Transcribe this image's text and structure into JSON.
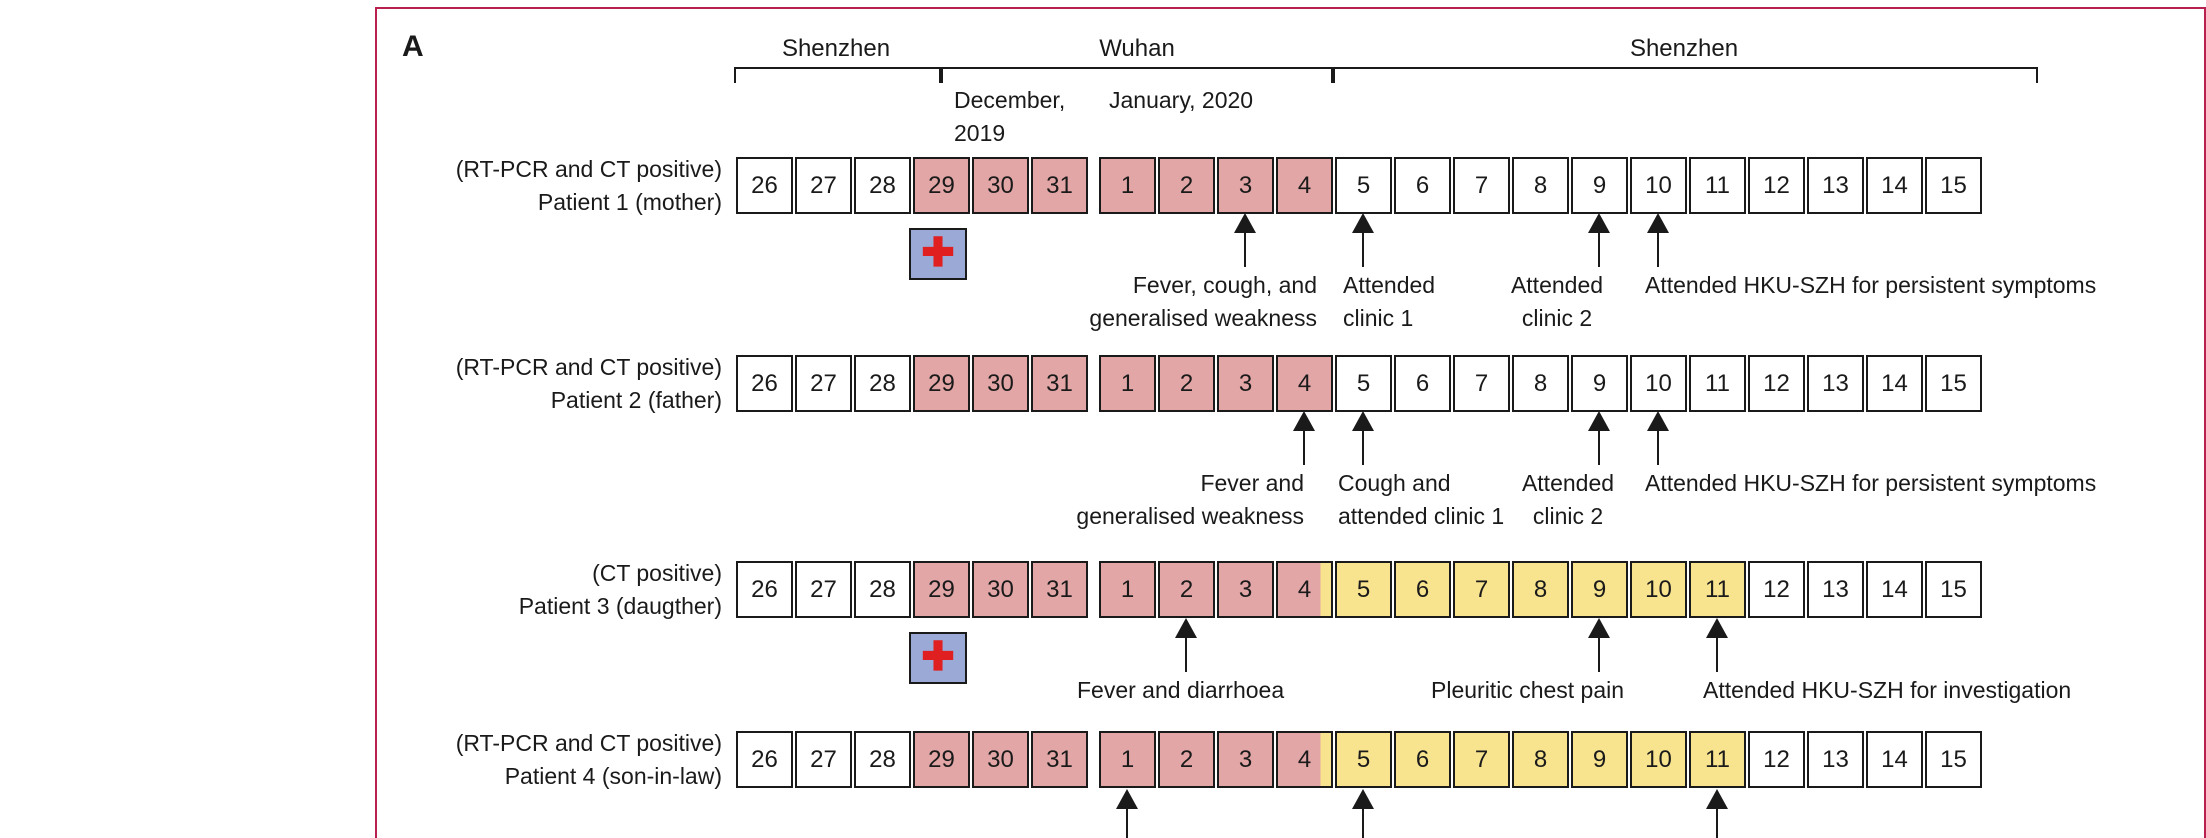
{
  "panel_label": "A",
  "regions": [
    {
      "label": "Shenzhen"
    },
    {
      "label": "Wuhan"
    },
    {
      "label": "Shenzhen"
    }
  ],
  "months": {
    "dec_line1": "December,",
    "dec_line2": "2019",
    "jan": "January, 2020"
  },
  "dec_days": [
    "26",
    "27",
    "28",
    "29",
    "30",
    "31"
  ],
  "jan_days": [
    "1",
    "2",
    "3",
    "4",
    "5",
    "6",
    "7",
    "8",
    "9",
    "10",
    "11",
    "12",
    "13",
    "14",
    "15"
  ],
  "hospital_icon": "red-cross-icon",
  "colors": {
    "wuhan": "#e3a6a6",
    "symptomatic": "#f8e38f",
    "frame": "#b8204f"
  },
  "patients": [
    {
      "status": "(RT-PCR and CT positive)",
      "name": "Patient 1 (mother)",
      "yellow_days": [],
      "annotations": [
        {
          "lines": [
            "Fever, cough, and",
            "generalised weakness"
          ]
        },
        {
          "lines": [
            "Attended",
            "clinic 1"
          ]
        },
        {
          "lines": [
            "Attended",
            "clinic 2"
          ]
        },
        {
          "lines": [
            "Attended HKU-SZH for persistent symptoms"
          ]
        }
      ]
    },
    {
      "status": "(RT-PCR and CT positive)",
      "name": "Patient 2 (father)",
      "yellow_days": [],
      "annotations": [
        {
          "lines": [
            "Fever and",
            "generalised weakness"
          ]
        },
        {
          "lines": [
            "Cough and",
            "attended  clinic 1"
          ]
        },
        {
          "lines": [
            "Attended",
            "clinic 2"
          ]
        },
        {
          "lines": [
            "Attended HKU-SZH for persistent symptoms"
          ]
        }
      ]
    },
    {
      "status": "(CT positive)",
      "name": "Patient 3 (daugther)",
      "yellow_days": [
        5,
        6,
        7,
        8,
        9,
        10,
        11
      ],
      "annotations": [
        {
          "lines": [
            "Fever and diarrhoea"
          ]
        },
        {
          "lines": [
            "Pleuritic chest pain"
          ]
        },
        {
          "lines": [
            "Attended HKU-SZH for investigation"
          ]
        }
      ]
    },
    {
      "status": "(RT-PCR and CT positive)",
      "name": "Patient 4 (son-in-law)",
      "yellow_days": [
        5,
        6,
        7,
        8,
        9,
        10,
        11
      ],
      "annotations": []
    }
  ]
}
